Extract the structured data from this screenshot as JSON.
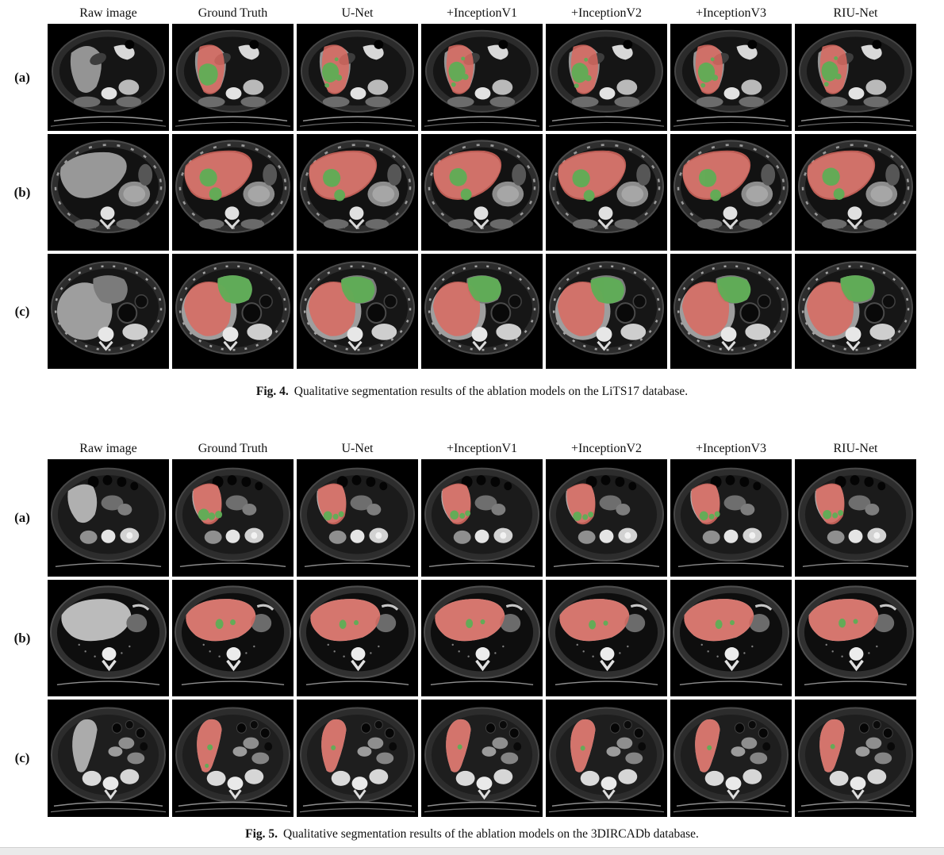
{
  "figures": [
    {
      "id": "figure-4",
      "caption_label": "Fig. 4.",
      "caption_text": "Qualitative segmentation results of the ablation models on the LiTS17 database.",
      "column_headers": [
        "Raw image",
        "Ground Truth",
        "U-Net",
        "+InceptionV1",
        "+InceptionV2",
        "+InceptionV3",
        "RIU-Net"
      ],
      "rows": [
        {
          "label": "(a)",
          "scene": "f4a"
        },
        {
          "label": "(b)",
          "scene": "f4b"
        },
        {
          "label": "(c)",
          "scene": "f4c"
        }
      ]
    },
    {
      "id": "figure-5",
      "caption_label": "Fig. 5.",
      "caption_text": "Qualitative segmentation results of the ablation models on the 3DIRCADb database.",
      "column_headers": [
        "Raw image",
        "Ground Truth",
        "U-Net",
        "+InceptionV1",
        "+InceptionV2",
        "+InceptionV3",
        "RIU-Net"
      ],
      "rows": [
        {
          "label": "(a)",
          "scene": "f5a"
        },
        {
          "label": "(b)",
          "scene": "f5b"
        },
        {
          "label": "(c)",
          "scene": "f5c"
        }
      ]
    }
  ],
  "legend_semantics": {
    "red_overlay": "liver segmentation",
    "green_overlay": "tumor segmentation"
  },
  "colors": {
    "liver_overlay_red": "#d96a60",
    "tumor_overlay_green": "#5fae56",
    "tile_background": "#000000",
    "page_background": "#ffffff",
    "bottom_bar": "#eaeaea"
  }
}
